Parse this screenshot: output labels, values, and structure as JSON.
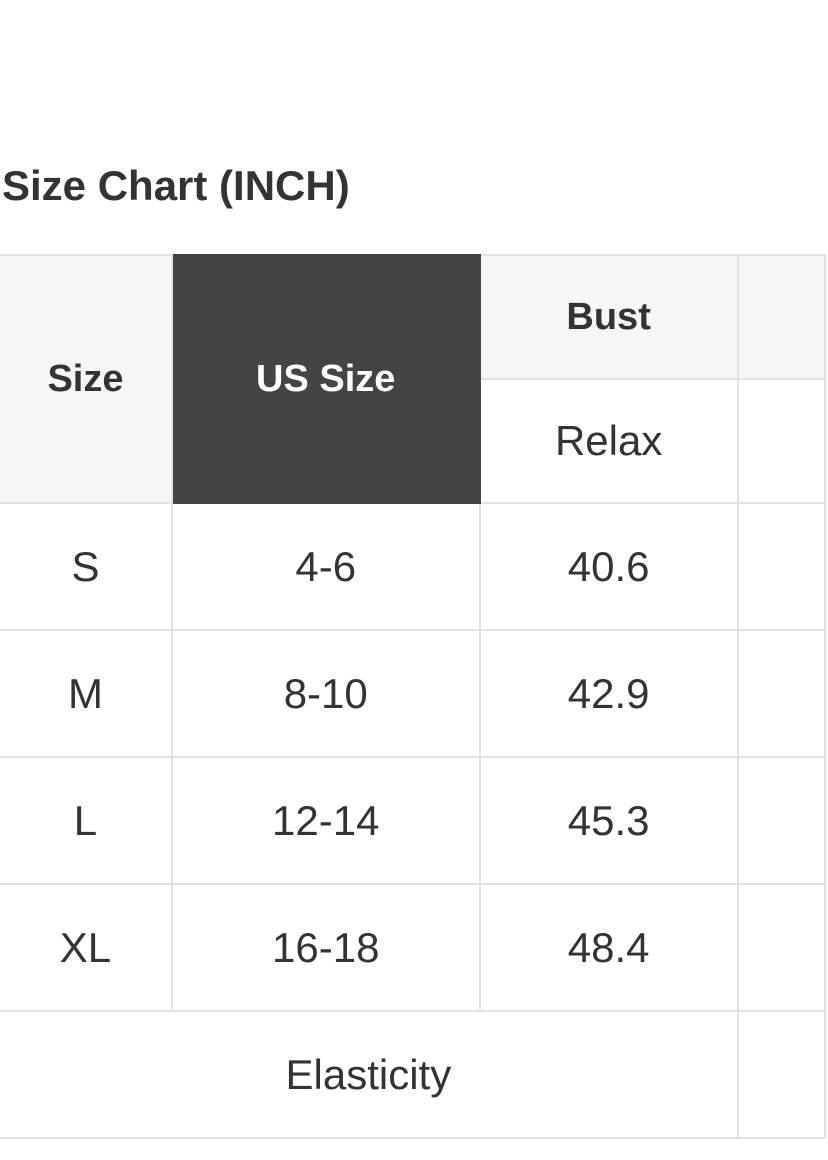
{
  "title": "Size Chart (INCH)",
  "header": {
    "size": "Size",
    "us_size": "US Size",
    "bust": "Bust",
    "relax": "Relax"
  },
  "rows": [
    {
      "size": "S",
      "us_size": "4-6",
      "bust": "40.6"
    },
    {
      "size": "M",
      "us_size": "8-10",
      "bust": "42.9"
    },
    {
      "size": "L",
      "us_size": "12-14",
      "bust": "45.3"
    },
    {
      "size": "XL",
      "us_size": "16-18",
      "bust": "48.4"
    }
  ],
  "footer": {
    "elasticity": "Elasticity"
  },
  "colors": {
    "us_size_header_bg": "#444444",
    "header_bg": "#f6f6f6",
    "border": "#e2e2e2"
  }
}
